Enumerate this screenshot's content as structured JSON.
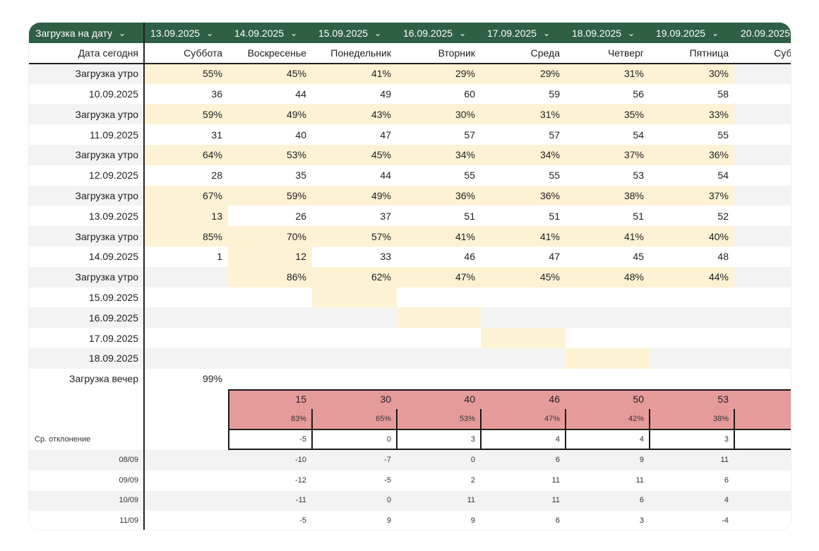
{
  "header": {
    "first_label": "Загрузка на дату",
    "dates": [
      "13.09.2025",
      "14.09.2025",
      "15.09.2025",
      "16.09.2025",
      "17.09.2025",
      "18.09.2025",
      "19.09.2025",
      "20.09.2025"
    ],
    "chevron_icon": "chevron-down-icon"
  },
  "weekday_row": {
    "label": "Дата сегодня",
    "days": [
      "Суббота",
      "Воскресенье",
      "Понедельник",
      "Вторник",
      "Среда",
      "Четверг",
      "Пятница",
      "Суббота"
    ]
  },
  "rows": [
    {
      "label": "Загрузка утро",
      "values": [
        "55%",
        "45%",
        "41%",
        "29%",
        "29%",
        "31%",
        "30%",
        ""
      ]
    },
    {
      "label": "10.09.2025",
      "values": [
        "36",
        "44",
        "49",
        "60",
        "59",
        "56",
        "58",
        ""
      ]
    },
    {
      "label": "Загрузка утро",
      "values": [
        "59%",
        "49%",
        "43%",
        "30%",
        "31%",
        "35%",
        "33%",
        ""
      ]
    },
    {
      "label": "11.09.2025",
      "values": [
        "31",
        "40",
        "47",
        "57",
        "57",
        "54",
        "55",
        ""
      ]
    },
    {
      "label": "Загрузка утро",
      "values": [
        "64%",
        "53%",
        "45%",
        "34%",
        "34%",
        "37%",
        "36%",
        ""
      ]
    },
    {
      "label": "12.09.2025",
      "values": [
        "28",
        "35",
        "44",
        "55",
        "55",
        "53",
        "54",
        ""
      ]
    },
    {
      "label": "Загрузка утро",
      "values": [
        "67%",
        "59%",
        "49%",
        "36%",
        "36%",
        "38%",
        "37%",
        ""
      ]
    },
    {
      "label": "13.09.2025",
      "values": [
        "13",
        "26",
        "37",
        "51",
        "51",
        "51",
        "52",
        ""
      ]
    },
    {
      "label": "Загрузка утро",
      "values": [
        "85%",
        "70%",
        "57%",
        "41%",
        "41%",
        "41%",
        "40%",
        ""
      ]
    },
    {
      "label": "14.09.2025",
      "values": [
        "1",
        "12",
        "33",
        "46",
        "47",
        "45",
        "48",
        ""
      ]
    },
    {
      "label": "Загрузка утро",
      "values": [
        "",
        "86%",
        "62%",
        "47%",
        "45%",
        "48%",
        "44%",
        ""
      ]
    },
    {
      "label": "15.09.2025",
      "values": [
        "",
        "",
        "",
        "",
        "",
        "",
        "",
        ""
      ]
    },
    {
      "label": "16.09.2025",
      "values": [
        "",
        "",
        "",
        "",
        "",
        "",
        "",
        ""
      ]
    },
    {
      "label": "17.09.2025",
      "values": [
        "",
        "",
        "",
        "",
        "",
        "",
        "",
        ""
      ]
    },
    {
      "label": "18.09.2025",
      "values": [
        "",
        "",
        "",
        "",
        "",
        "",
        "",
        ""
      ]
    },
    {
      "label": "Загрузка вечер",
      "values": [
        "99%",
        "",
        "",
        "",
        "",
        "",
        "",
        ""
      ]
    }
  ],
  "summary": {
    "counts": [
      "15",
      "30",
      "40",
      "46",
      "50",
      "53"
    ],
    "percents": [
      "83%",
      "65%",
      "53%",
      "47%",
      "42%",
      "38%"
    ]
  },
  "deviation": {
    "label": "Ср. отклонение",
    "values": [
      "-5",
      "0",
      "3",
      "4",
      "4",
      "3"
    ]
  },
  "history": [
    {
      "label": "08/09",
      "values": [
        "-10",
        "-7",
        "0",
        "6",
        "9",
        "11"
      ]
    },
    {
      "label": "09/09",
      "values": [
        "-12",
        "-5",
        "2",
        "11",
        "11",
        "6"
      ]
    },
    {
      "label": "10/09",
      "values": [
        "-11",
        "0",
        "11",
        "11",
        "6",
        "4"
      ]
    },
    {
      "label": "11/09",
      "values": [
        "-5",
        "9",
        "9",
        "6",
        "3",
        "-4"
      ]
    }
  ],
  "colors": {
    "header_bg": "#2f5f45",
    "highlight_beige": "#fdf2d3",
    "row_gray": "#f2f3f2",
    "summary_pink": "#e69b9b"
  }
}
